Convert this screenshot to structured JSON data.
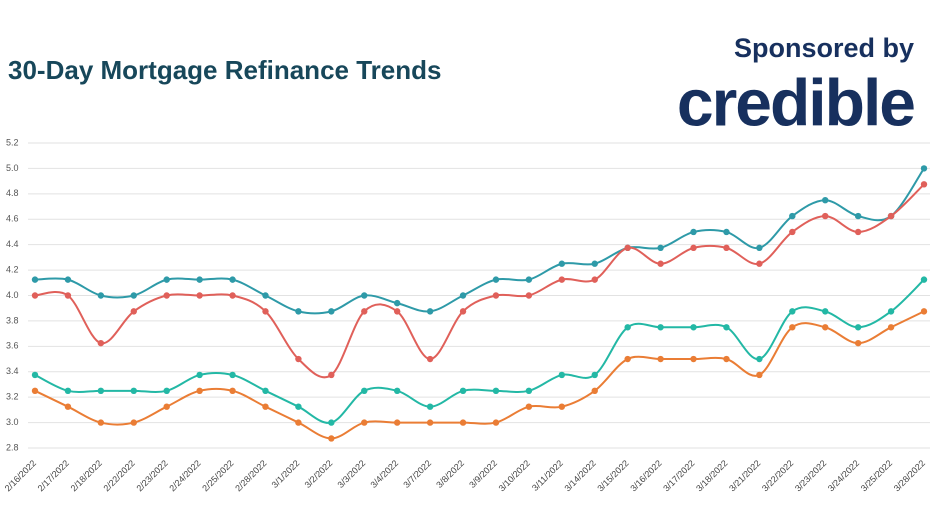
{
  "chart_data": {
    "type": "line",
    "title": "30-Day Mortgage Refinance Trends",
    "sponsor_text": "Sponsored by",
    "logo": "credible",
    "categories": [
      "2/16/2022",
      "2/17/2022",
      "2/18/2022",
      "2/22/2022",
      "2/23/2022",
      "2/24/2022",
      "2/25/2022",
      "2/28/2022",
      "3/1/2022",
      "3/2/2022",
      "3/3/2022",
      "3/4/2022",
      "3/7/2022",
      "3/8/2022",
      "3/9/2022",
      "3/10/2022",
      "3/11/2022",
      "3/14/2022",
      "3/15/2022",
      "3/16/2022",
      "3/17/2022",
      "3/18/2022",
      "3/21/2022",
      "3/22/2022",
      "3/23/2022",
      "3/24/2022",
      "3/25/2022",
      "3/28/2022"
    ],
    "series": [
      {
        "color": "#2e9aa8",
        "values": [
          4.125,
          4.125,
          4.0,
          4.0,
          4.125,
          4.125,
          4.125,
          4.0,
          3.875,
          3.875,
          4.0,
          3.94,
          3.875,
          4.0,
          4.125,
          4.125,
          4.25,
          4.25,
          4.375,
          4.375,
          4.5,
          4.5,
          4.375,
          4.625,
          4.75,
          4.625,
          4.625,
          5.0
        ]
      },
      {
        "color": "#e0605a",
        "values": [
          4.0,
          4.0,
          3.625,
          3.875,
          4.0,
          4.0,
          4.0,
          3.875,
          3.5,
          3.375,
          3.875,
          3.875,
          3.5,
          3.875,
          4.0,
          4.0,
          4.125,
          4.125,
          4.375,
          4.25,
          4.375,
          4.375,
          4.25,
          4.5,
          4.625,
          4.5,
          4.625,
          4.875
        ]
      },
      {
        "color": "#23b8a5",
        "values": [
          3.375,
          3.25,
          3.25,
          3.25,
          3.25,
          3.375,
          3.375,
          3.25,
          3.125,
          3.0,
          3.25,
          3.25,
          3.125,
          3.25,
          3.25,
          3.25,
          3.375,
          3.375,
          3.75,
          3.75,
          3.75,
          3.75,
          3.5,
          3.875,
          3.875,
          3.75,
          3.875,
          4.125
        ]
      },
      {
        "color": "#ea7d35",
        "values": [
          3.25,
          3.125,
          3.0,
          3.0,
          3.125,
          3.25,
          3.25,
          3.125,
          3.0,
          2.875,
          3.0,
          3.0,
          3.0,
          3.0,
          3.0,
          3.125,
          3.125,
          3.25,
          3.5,
          3.5,
          3.5,
          3.5,
          3.375,
          3.75,
          3.75,
          3.625,
          3.75,
          3.875
        ]
      }
    ],
    "ylim": [
      2.8,
      5.2
    ],
    "yticks": [
      2.8,
      {
        "value": 3,
        "label": "3.0"
      },
      3.2,
      3.4,
      3.6,
      3.8,
      {
        "value": 4,
        "label": "4.0"
      },
      4.2,
      4.4,
      4.6,
      4.8,
      {
        "value": 5,
        "label": "5.0"
      },
      5.2
    ],
    "grid": true
  }
}
